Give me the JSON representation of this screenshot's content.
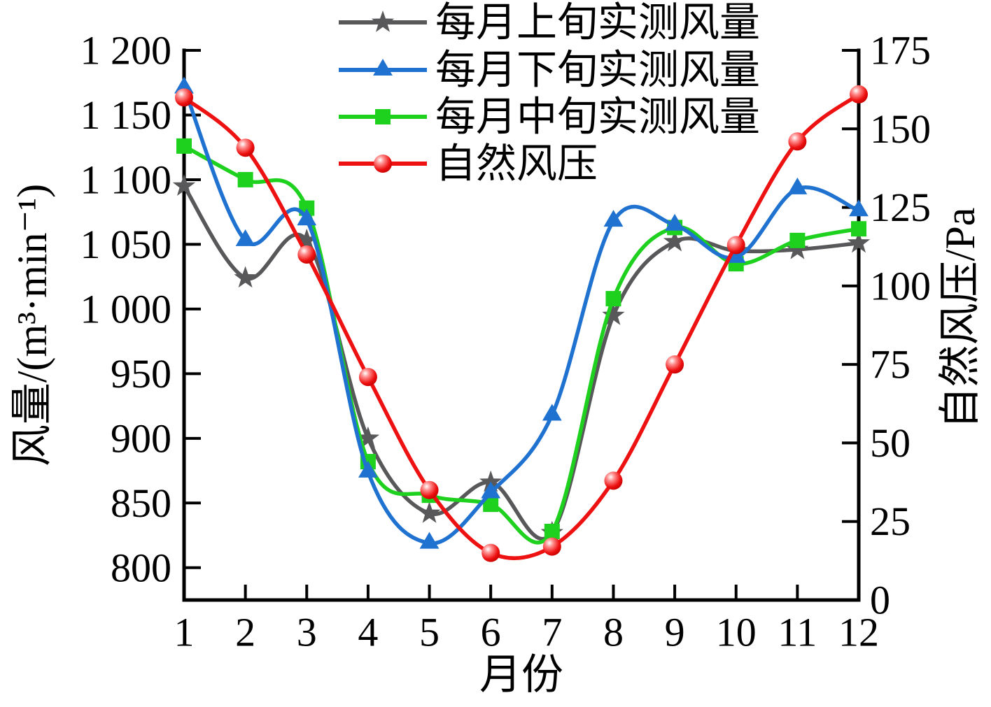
{
  "figure": {
    "kind": "dual-axis smooth line chart",
    "background": "#ffffff",
    "axis_color": "#000000"
  },
  "chart_data": {
    "type": "line",
    "title": "",
    "xlabel": "月份",
    "ylabel_left": "风量/(m³·min⁻¹)",
    "ylabel_right": "自然风压/Pa",
    "x": [
      1,
      2,
      3,
      4,
      5,
      6,
      7,
      8,
      9,
      10,
      11,
      12
    ],
    "x_tick_labels": [
      "1",
      "2",
      "3",
      "4",
      "5",
      "6",
      "7",
      "8",
      "9",
      "10",
      "11",
      "12"
    ],
    "axis_left_range": [
      775,
      1200
    ],
    "axis_right_range": [
      0,
      175
    ],
    "grid": false,
    "legend_position": "top-center",
    "y_left_ticks": [
      {
        "value": 1200,
        "label": "1 200"
      },
      {
        "value": 1150,
        "label": "1 150"
      },
      {
        "value": 1100,
        "label": "1 100"
      },
      {
        "value": 1050,
        "label": "1 050"
      },
      {
        "value": 1000,
        "label": "1 000"
      },
      {
        "value": 950,
        "label": "950"
      },
      {
        "value": 900,
        "label": "900"
      },
      {
        "value": 850,
        "label": "850"
      },
      {
        "value": 800,
        "label": "800"
      }
    ],
    "y_right_ticks": [
      {
        "value": 175,
        "label": "175"
      },
      {
        "value": 150,
        "label": "150"
      },
      {
        "value": 125,
        "label": "125"
      },
      {
        "value": 100,
        "label": "100"
      },
      {
        "value": 75,
        "label": "75"
      },
      {
        "value": 50,
        "label": "50"
      },
      {
        "value": 25,
        "label": "25"
      },
      {
        "value": 0,
        "label": "0"
      }
    ],
    "series": [
      {
        "name": "每月上旬实测风量",
        "axis": "left",
        "marker": "star",
        "color": "#58585a",
        "zorder": 1,
        "values": [
          1095,
          1024,
          1053,
          900,
          842,
          866,
          827,
          995,
          1052,
          1045,
          1046,
          1051
        ]
      },
      {
        "name": "每月下旬实测风量",
        "axis": "left",
        "marker": "triangle",
        "color": "#1f72d0",
        "zorder": 3,
        "values": [
          1171,
          1053,
          1069,
          874,
          819,
          858,
          918,
          1068,
          1065,
          1040,
          1093,
          1076
        ]
      },
      {
        "name": "每月中旬实测风量",
        "axis": "left",
        "marker": "square",
        "color": "#1fd11f",
        "zorder": 2,
        "values": [
          1126,
          1100,
          1078,
          882,
          856,
          849,
          828,
          1008,
          1063,
          1035,
          1053,
          1062
        ]
      },
      {
        "name": "自然风压",
        "axis": "right",
        "marker": "circle",
        "color": "#ee1111",
        "zorder": 4,
        "values": [
          160,
          144,
          110,
          71,
          35,
          15,
          17,
          38,
          75,
          113,
          146,
          161
        ]
      }
    ]
  }
}
